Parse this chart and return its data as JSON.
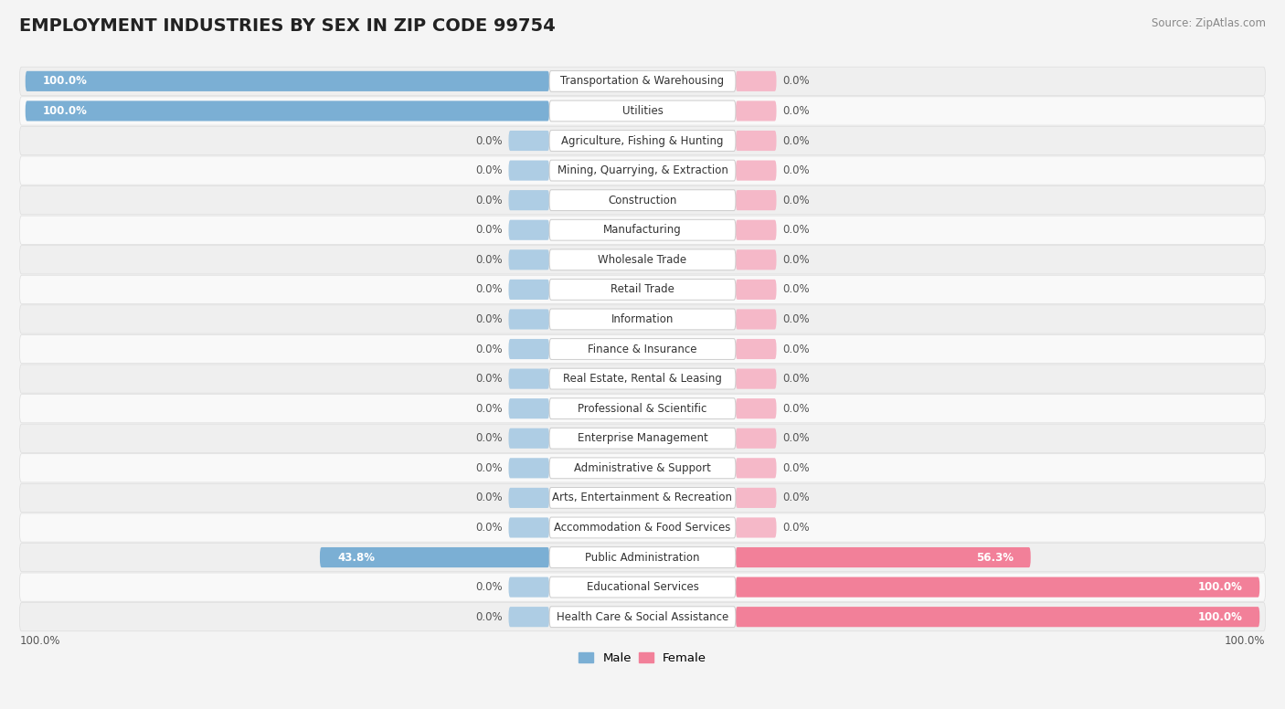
{
  "title": "EMPLOYMENT INDUSTRIES BY SEX IN ZIP CODE 99754",
  "source": "Source: ZipAtlas.com",
  "categories": [
    "Transportation & Warehousing",
    "Utilities",
    "Agriculture, Fishing & Hunting",
    "Mining, Quarrying, & Extraction",
    "Construction",
    "Manufacturing",
    "Wholesale Trade",
    "Retail Trade",
    "Information",
    "Finance & Insurance",
    "Real Estate, Rental & Leasing",
    "Professional & Scientific",
    "Enterprise Management",
    "Administrative & Support",
    "Arts, Entertainment & Recreation",
    "Accommodation & Food Services",
    "Public Administration",
    "Educational Services",
    "Health Care & Social Assistance"
  ],
  "male": [
    100.0,
    100.0,
    0.0,
    0.0,
    0.0,
    0.0,
    0.0,
    0.0,
    0.0,
    0.0,
    0.0,
    0.0,
    0.0,
    0.0,
    0.0,
    0.0,
    43.8,
    0.0,
    0.0
  ],
  "female": [
    0.0,
    0.0,
    0.0,
    0.0,
    0.0,
    0.0,
    0.0,
    0.0,
    0.0,
    0.0,
    0.0,
    0.0,
    0.0,
    0.0,
    0.0,
    0.0,
    56.3,
    100.0,
    100.0
  ],
  "male_color": "#7bafd4",
  "female_color": "#f28099",
  "male_zero_color": "#aecde4",
  "female_zero_color": "#f5b8c8",
  "bg_color": "#f4f4f4",
  "row_color_even": "#efefef",
  "row_color_odd": "#f9f9f9",
  "label_box_color": "#ffffff",
  "title_fontsize": 14,
  "label_fontsize": 8.5,
  "value_fontsize": 8.5
}
